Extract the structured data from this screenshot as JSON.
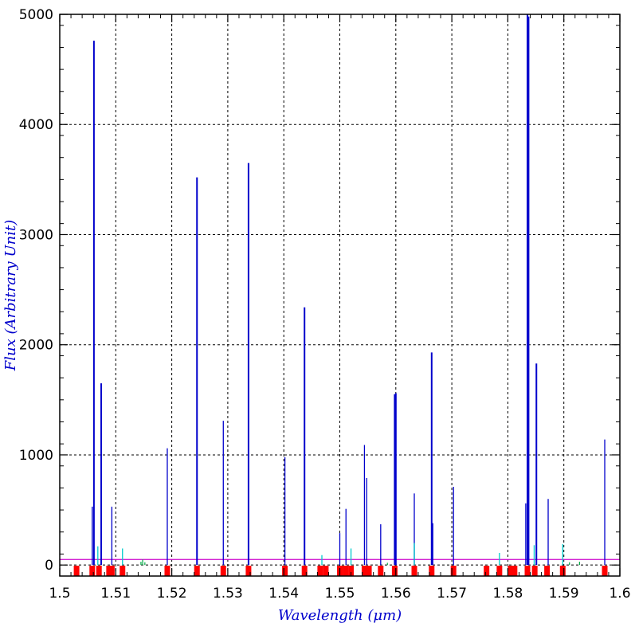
{
  "chart_data": {
    "type": "line",
    "title": "",
    "xlabel": "Wavelength (μm)",
    "ylabel": "Flux (Arbitrary Unit)",
    "xlim": [
      1.5,
      1.6
    ],
    "ylim": [
      -100,
      5000
    ],
    "grid": true,
    "x_ticks": [
      1.5,
      1.51,
      1.52,
      1.53,
      1.54,
      1.55,
      1.56,
      1.57,
      1.58,
      1.59,
      1.6
    ],
    "x_tick_labels": [
      "1.5",
      "1.51",
      "1.52",
      "1.53",
      "1.54",
      "1.55",
      "1.56",
      "1.57",
      "1.58",
      "1.59",
      "1.6"
    ],
    "y_ticks": [
      0,
      1000,
      2000,
      3000,
      4000,
      5000
    ],
    "y_tick_labels": [
      "0",
      "1000",
      "2000",
      "3000",
      "4000",
      "5000"
    ],
    "colors": {
      "lines": "#0000cc",
      "weak_lines": "#00cccc",
      "continuum": "#cc00cc",
      "noise": "#00aa44",
      "markers": "#ff0000",
      "grid": "#000000",
      "axis_title": "#0000cc"
    },
    "continuum_level": 50,
    "series": [
      {
        "style": "emission-lines",
        "x": [
          1.5058,
          1.5061,
          1.5074,
          1.5093,
          1.5192,
          1.5245,
          1.5292,
          1.5337,
          1.5402,
          1.5437,
          1.55,
          1.5511,
          1.5544,
          1.5548,
          1.5573,
          1.5598,
          1.56,
          1.5633,
          1.5664,
          1.5666,
          1.5703,
          1.5832,
          1.5835,
          1.5837,
          1.5851,
          1.5872,
          1.5973
        ],
        "y": [
          530,
          4760,
          1650,
          530,
          1060,
          3520,
          1310,
          3650,
          980,
          2340,
          290,
          510,
          1090,
          790,
          370,
          1550,
          1560,
          650,
          1930,
          380,
          710,
          560,
          5000,
          4980,
          1830,
          600,
          1140
        ]
      },
      {
        "style": "weak-lines",
        "x": [
          1.5068,
          1.5112,
          1.5468,
          1.552,
          1.5633,
          1.5785,
          1.5847,
          1.5898
        ],
        "y": [
          170,
          150,
          90,
          150,
          200,
          110,
          180,
          190
        ]
      },
      {
        "style": "noise",
        "x": [
          1.5145,
          1.5148,
          1.5152,
          1.5585,
          1.591,
          1.5928
        ],
        "y": [
          30,
          50,
          25,
          20,
          25,
          30
        ]
      }
    ],
    "markers": [
      1.503,
      1.5058,
      1.507,
      1.5088,
      1.5093,
      1.5112,
      1.5192,
      1.5245,
      1.5292,
      1.5337,
      1.5402,
      1.5437,
      1.5465,
      1.5475,
      1.55,
      1.551,
      1.552,
      1.5544,
      1.5552,
      1.5573,
      1.5598,
      1.5633,
      1.5664,
      1.5703,
      1.5762,
      1.5785,
      1.5805,
      1.5812,
      1.5835,
      1.5848,
      1.587,
      1.5898,
      1.5973
    ]
  }
}
